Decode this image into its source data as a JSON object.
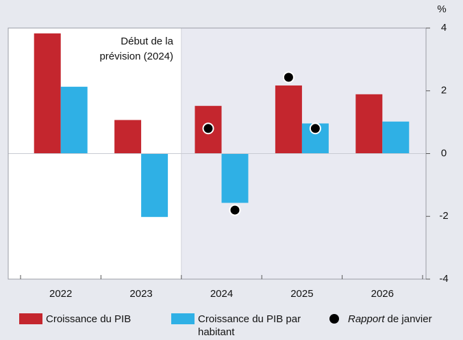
{
  "chart_data": {
    "type": "bar",
    "categories": [
      "2022",
      "2023",
      "2024",
      "2025",
      "2026"
    ],
    "series": [
      {
        "name": "Croissance du PIB",
        "color": "#c4262e",
        "values": [
          3.83,
          1.07,
          1.52,
          2.17,
          1.89
        ]
      },
      {
        "name": "Croissance du PIB par habitant",
        "color": "#2fb0e5",
        "values": [
          2.13,
          -2.02,
          -1.57,
          0.96,
          1.02
        ]
      }
    ],
    "january_report": {
      "name_italic": "Rapport",
      "name": "de janvier",
      "color": "#000000",
      "values": [
        [
          null,
          null,
          0.8,
          2.43,
          null
        ],
        [
          null,
          null,
          -1.8,
          0.8,
          null
        ]
      ]
    },
    "forecast_start": "2024",
    "annotation": [
      "Début de la",
      "prévision (2024)"
    ],
    "y_unit": "%",
    "ylim": [
      -4,
      4
    ],
    "yticks": [
      -4,
      -2,
      0,
      2,
      4
    ]
  }
}
